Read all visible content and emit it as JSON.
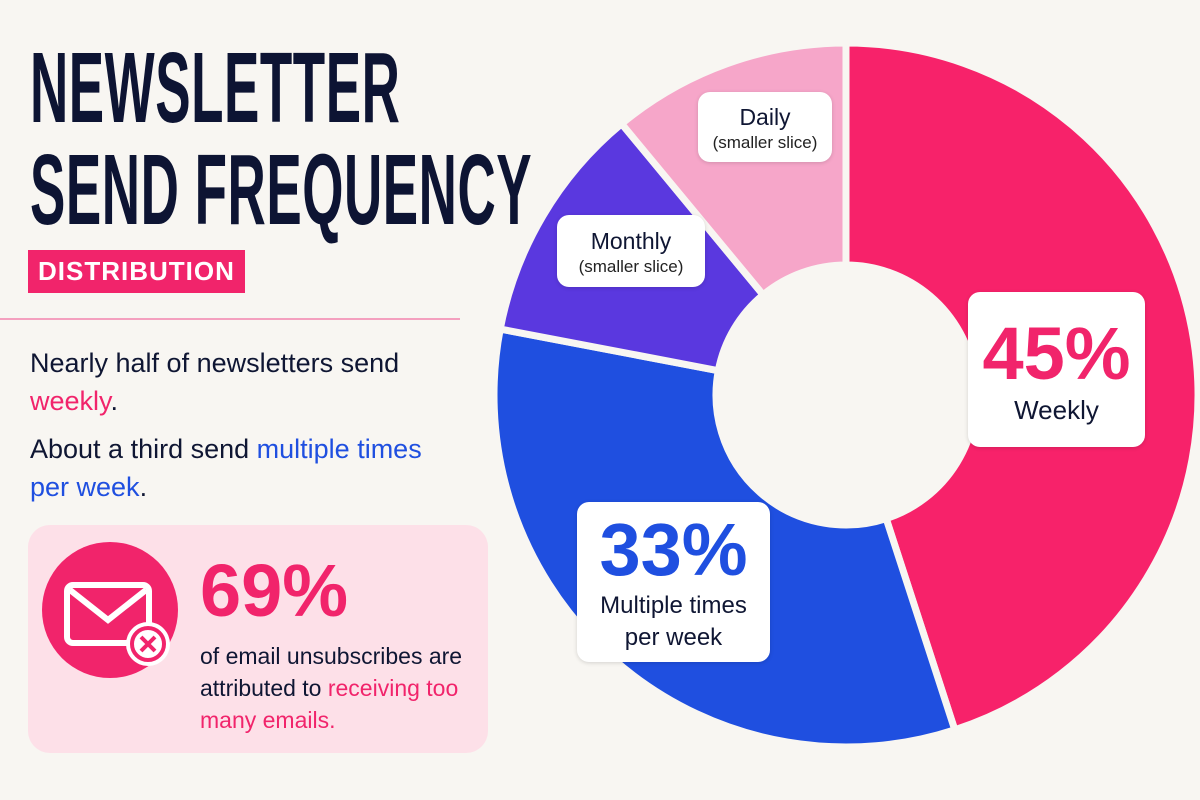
{
  "chart_data": {
    "type": "donut",
    "title": [
      "NEWSLETTER",
      "SEND FREQUENCY"
    ],
    "subtitle": "DISTRIBUTION",
    "description": [
      {
        "text": "Nearly half of newsletters send ",
        "em": "weekly",
        "end": "."
      },
      {
        "text": "About a third send ",
        "em": "multiple times per week",
        "end": "."
      }
    ],
    "callout": {
      "stat": "69%",
      "text": "of email unsubscribes are attributed to",
      "highlight": "receiving too many emails."
    },
    "categories": [
      "Weekly",
      "Multiple times per week",
      "Monthly",
      "Daily"
    ],
    "values": [
      45,
      33,
      11,
      11
    ],
    "value_labels": [
      "45%",
      "33%",
      "(smaller slice)",
      "(smaller slice)"
    ],
    "colors": [
      "#f7226a",
      "#1f4fe0",
      "#5a38df",
      "#f6a6c9"
    ]
  }
}
